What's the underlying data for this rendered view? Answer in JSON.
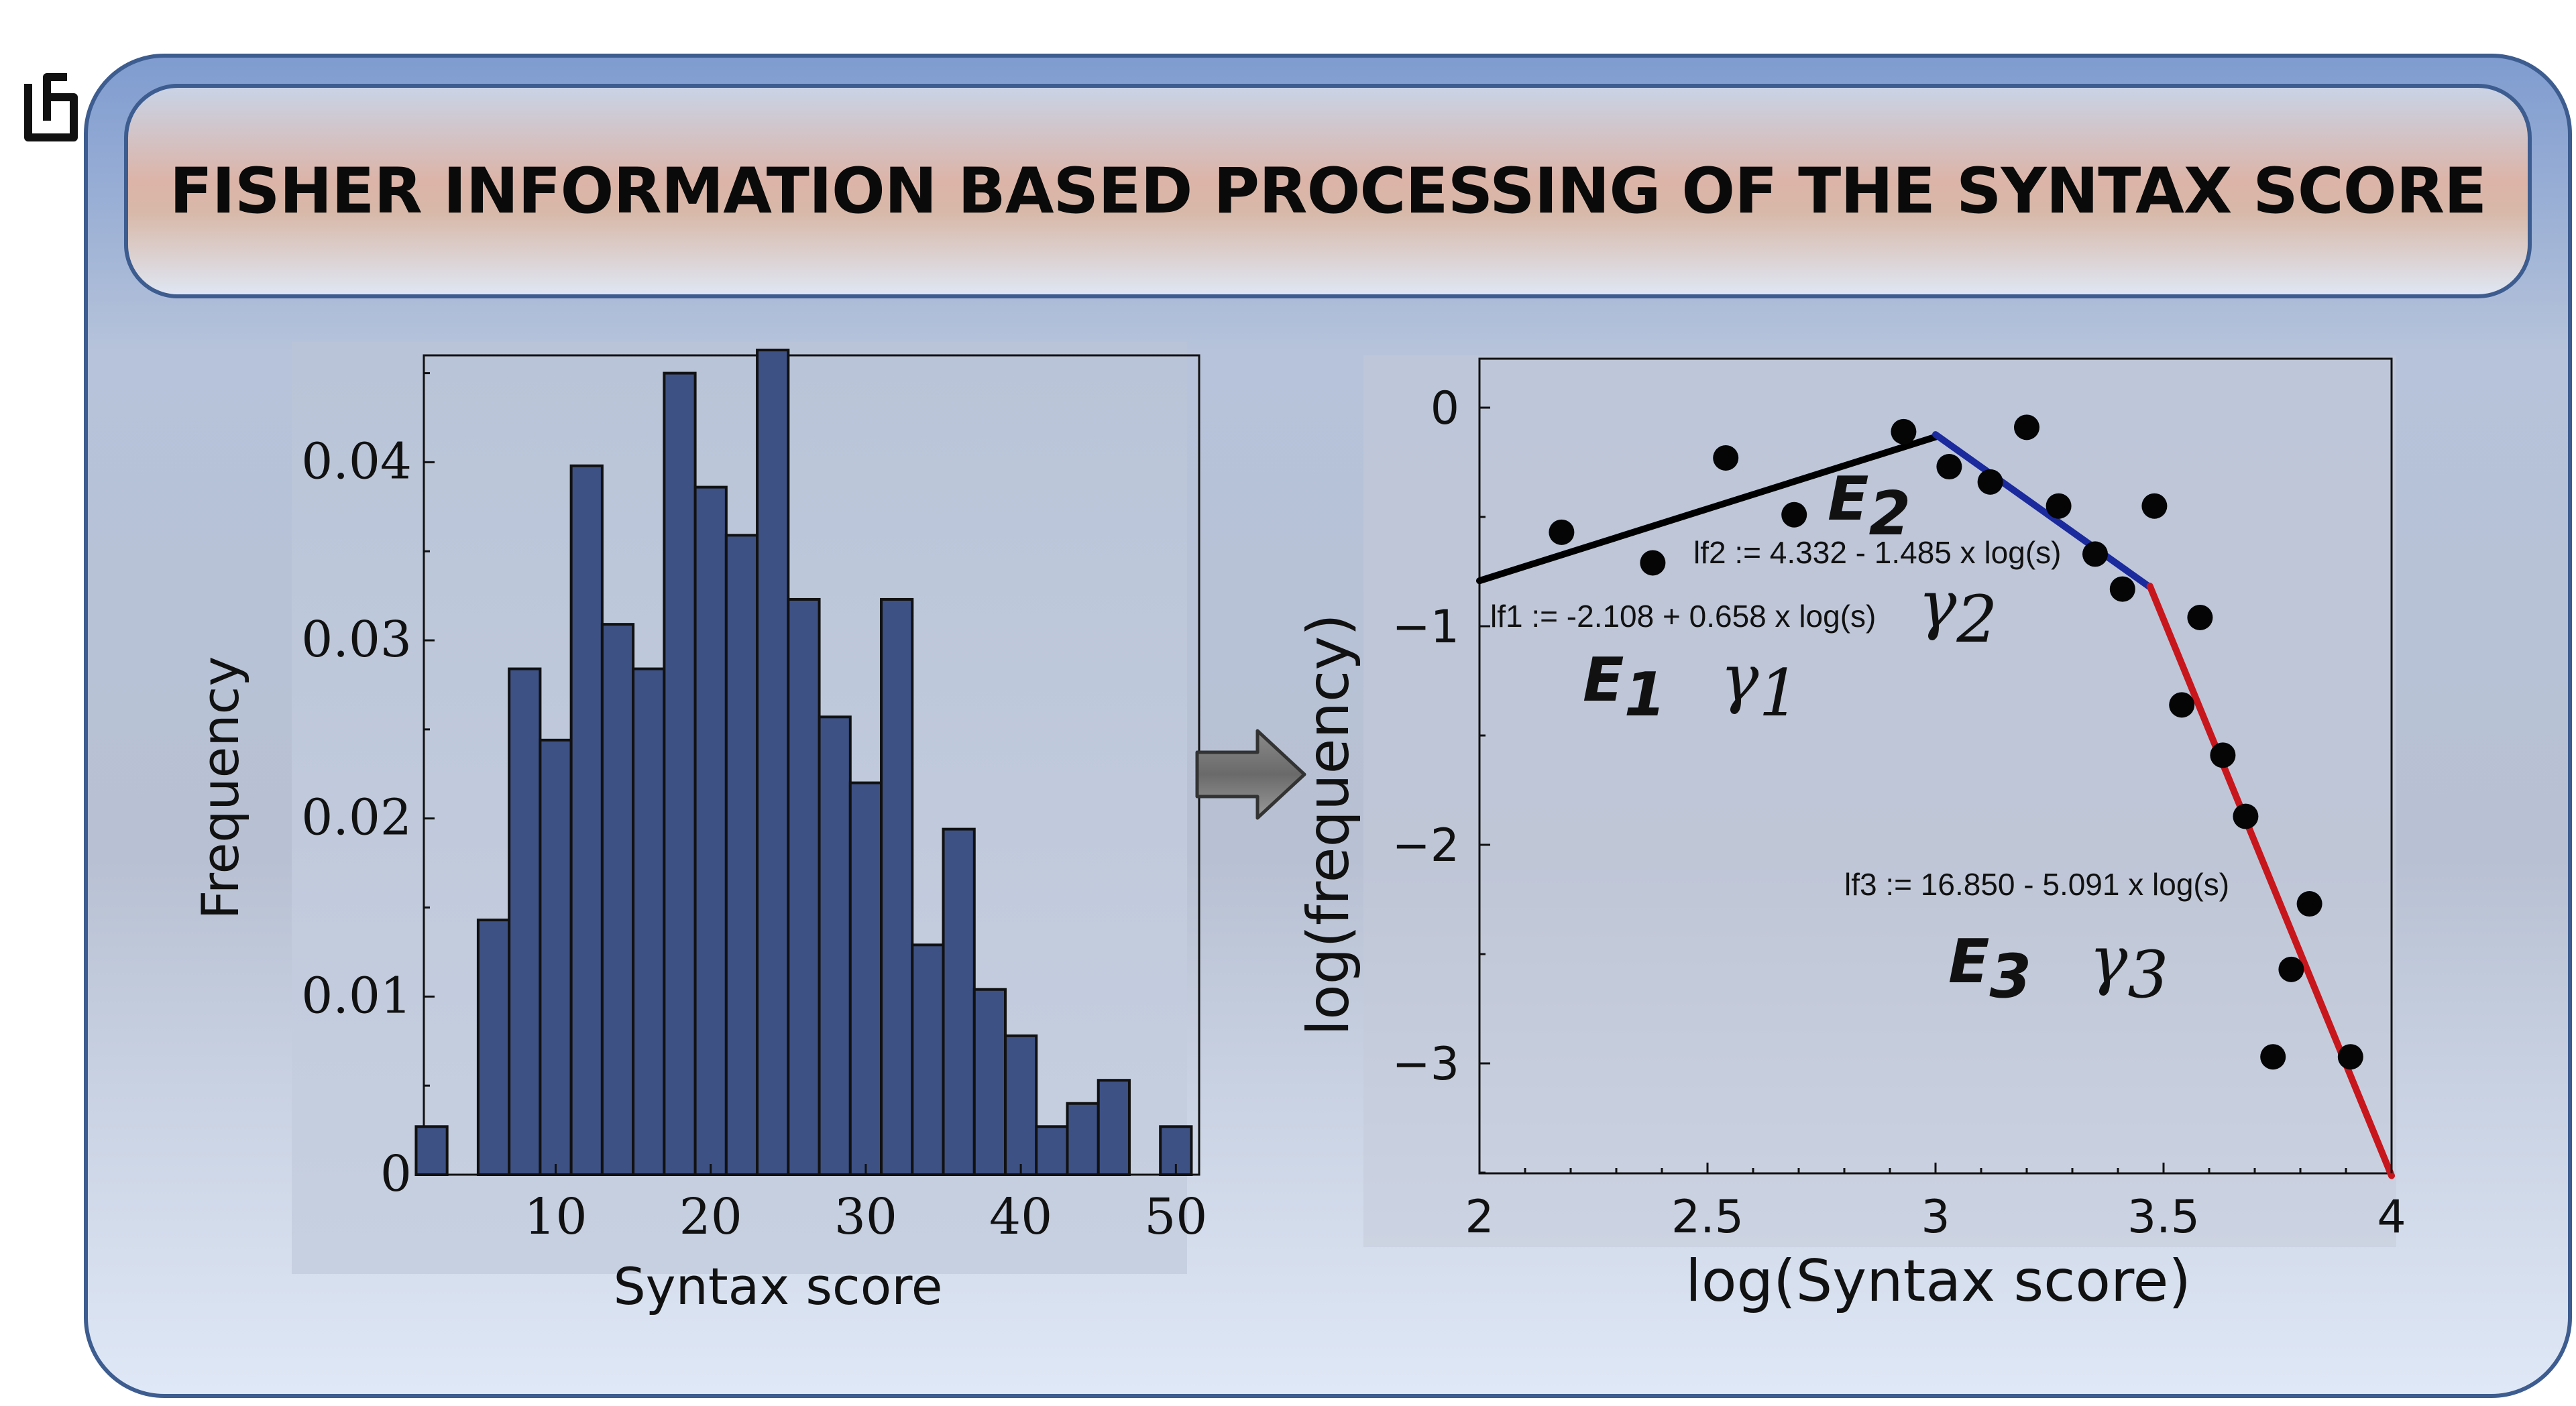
{
  "title": "FISHER INFORMATION BASED PROCESSING OF THE SYNTAX SCORE",
  "chart_data": [
    {
      "type": "bar",
      "xlabel": "Syntax score",
      "ylabel": "Frequency",
      "xlim": [
        1.5,
        51.5
      ],
      "ylim": [
        0,
        0.046
      ],
      "x_ticks": [
        "10",
        "20",
        "30",
        "40",
        "50"
      ],
      "y_ticks": [
        "0",
        "0.01",
        "0.02",
        "0.03",
        "0.04"
      ],
      "bin_width": 2,
      "bins": [
        {
          "start": 2,
          "value": 0.0027
        },
        {
          "start": 4,
          "value": 0
        },
        {
          "start": 6,
          "value": 0.0143
        },
        {
          "start": 8,
          "value": 0.0284
        },
        {
          "start": 10,
          "value": 0.0244
        },
        {
          "start": 12,
          "value": 0.0398
        },
        {
          "start": 14,
          "value": 0.0309
        },
        {
          "start": 16,
          "value": 0.0284
        },
        {
          "start": 18,
          "value": 0.045
        },
        {
          "start": 20,
          "value": 0.0386
        },
        {
          "start": 22,
          "value": 0.0359
        },
        {
          "start": 24,
          "value": 0.0463
        },
        {
          "start": 26,
          "value": 0.0323
        },
        {
          "start": 28,
          "value": 0.0257
        },
        {
          "start": 30,
          "value": 0.022
        },
        {
          "start": 32,
          "value": 0.0323
        },
        {
          "start": 34,
          "value": 0.0129
        },
        {
          "start": 36,
          "value": 0.0194
        },
        {
          "start": 38,
          "value": 0.0104
        },
        {
          "start": 40,
          "value": 0.0078
        },
        {
          "start": 42,
          "value": 0.0027
        },
        {
          "start": 44,
          "value": 0.004
        },
        {
          "start": 46,
          "value": 0.0053
        },
        {
          "start": 48,
          "value": 0
        },
        {
          "start": 50,
          "value": 0.0027
        }
      ],
      "bar_color": "#3d5185"
    },
    {
      "type": "scatter",
      "xlabel": "log(Syntax score)",
      "ylabel": "log(frequency)",
      "xlim": [
        2,
        4
      ],
      "ylim": [
        -3.5,
        0.22
      ],
      "x_ticks": [
        "2",
        "2.5",
        "3",
        "3.5",
        "4"
      ],
      "y_ticks": [
        "0",
        "−1",
        "−2",
        "−3"
      ],
      "points": [
        {
          "x": 2.18,
          "y": -0.57
        },
        {
          "x": 2.38,
          "y": -0.71
        },
        {
          "x": 2.54,
          "y": -0.23
        },
        {
          "x": 2.69,
          "y": -0.49
        },
        {
          "x": 2.93,
          "y": -0.11
        },
        {
          "x": 3.03,
          "y": -0.27
        },
        {
          "x": 3.12,
          "y": -0.34
        },
        {
          "x": 3.2,
          "y": -0.09
        },
        {
          "x": 3.27,
          "y": -0.45
        },
        {
          "x": 3.35,
          "y": -0.67
        },
        {
          "x": 3.41,
          "y": -0.83
        },
        {
          "x": 3.48,
          "y": -0.45
        },
        {
          "x": 3.54,
          "y": -1.36
        },
        {
          "x": 3.58,
          "y": -0.96
        },
        {
          "x": 3.63,
          "y": -1.59
        },
        {
          "x": 3.68,
          "y": -1.87
        },
        {
          "x": 3.74,
          "y": -2.97
        },
        {
          "x": 3.78,
          "y": -2.57
        },
        {
          "x": 3.82,
          "y": -2.27
        },
        {
          "x": 3.91,
          "y": -2.97
        }
      ],
      "fit_lines": [
        {
          "label": "lf1 := -2.108 + 0.658 x log(s)",
          "intercept": -2.108,
          "slope": 0.658,
          "x_range": [
            2,
            3
          ],
          "color": "#000000"
        },
        {
          "label": "lf2 := 4.332 - 1.485 x log(s)",
          "intercept": 4.332,
          "slope": -1.485,
          "x_range": [
            3,
            3.47
          ],
          "color": "#1b2a9c"
        },
        {
          "label": "lf3 := 16.850 - 5.091 x log(s)",
          "intercept": 16.85,
          "slope": -5.091,
          "x_range": [
            3.47,
            4
          ],
          "color": "#c8161d"
        }
      ],
      "annotations": [
        {
          "symbol": "E",
          "sub": "1"
        },
        {
          "symbol": "γ",
          "sub": "1"
        },
        {
          "symbol": "E",
          "sub": "2"
        },
        {
          "symbol": "γ",
          "sub": "2"
        },
        {
          "symbol": "E",
          "sub": "3"
        },
        {
          "symbol": "γ",
          "sub": "3"
        }
      ]
    }
  ]
}
